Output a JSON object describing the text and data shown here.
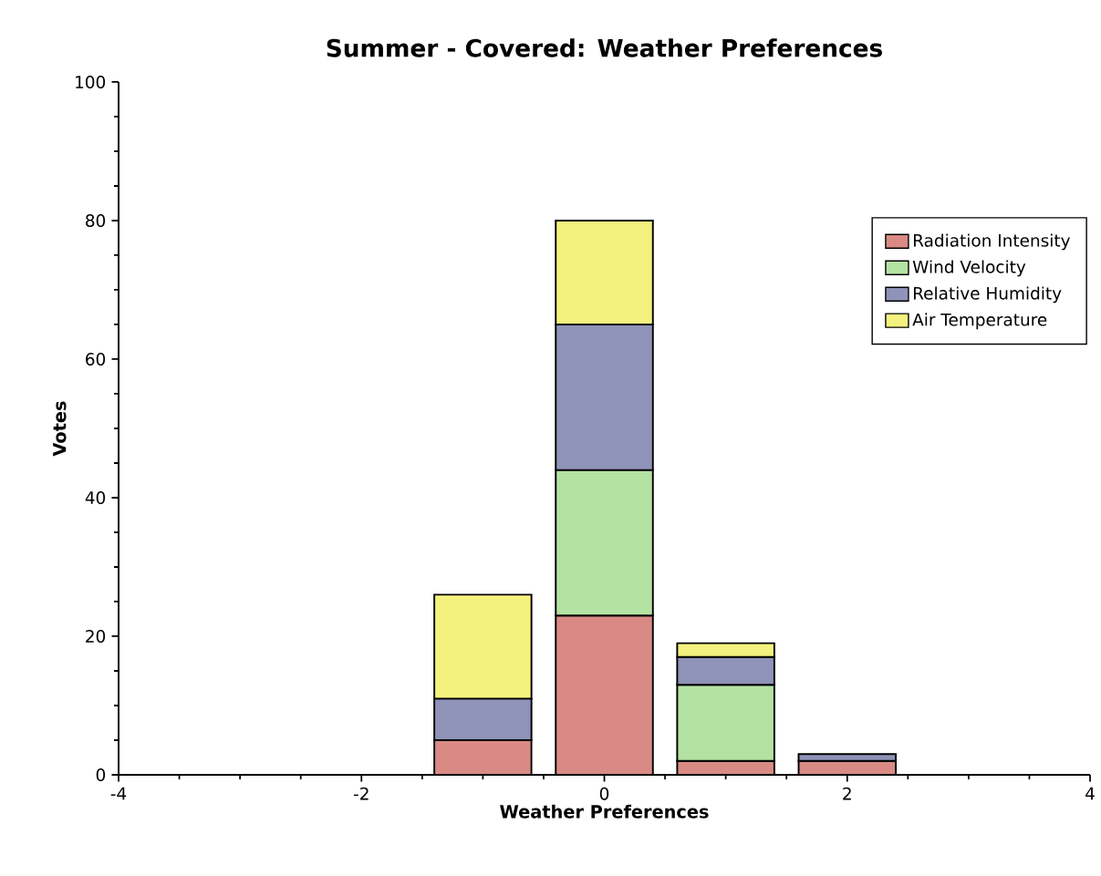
{
  "chart_data": {
    "type": "bar",
    "title": "Summer - Covered: Weather Preferences",
    "xlabel": "Weather Preferences",
    "ylabel": "Votes",
    "x": [
      -1,
      0,
      1,
      2
    ],
    "stacked": true,
    "series": [
      {
        "name": "Radiation Intensity",
        "color": "#d98a85",
        "values": [
          5,
          23,
          2,
          2
        ]
      },
      {
        "name": "Wind Velocity",
        "color": "#b4e2a2",
        "values": [
          0,
          21,
          11,
          0
        ]
      },
      {
        "name": "Relative Humidity",
        "color": "#8f93b8",
        "values": [
          6,
          21,
          4,
          1
        ]
      },
      {
        "name": "Air Temperature",
        "color": "#f4f27e",
        "values": [
          15,
          15,
          2,
          0
        ]
      }
    ],
    "xlim": [
      -4,
      4
    ],
    "ylim": [
      0,
      100
    ],
    "xticks": [
      -4,
      -2,
      0,
      2,
      4
    ],
    "yticks": [
      0,
      20,
      40,
      60,
      80,
      100
    ],
    "legend": "top right"
  }
}
